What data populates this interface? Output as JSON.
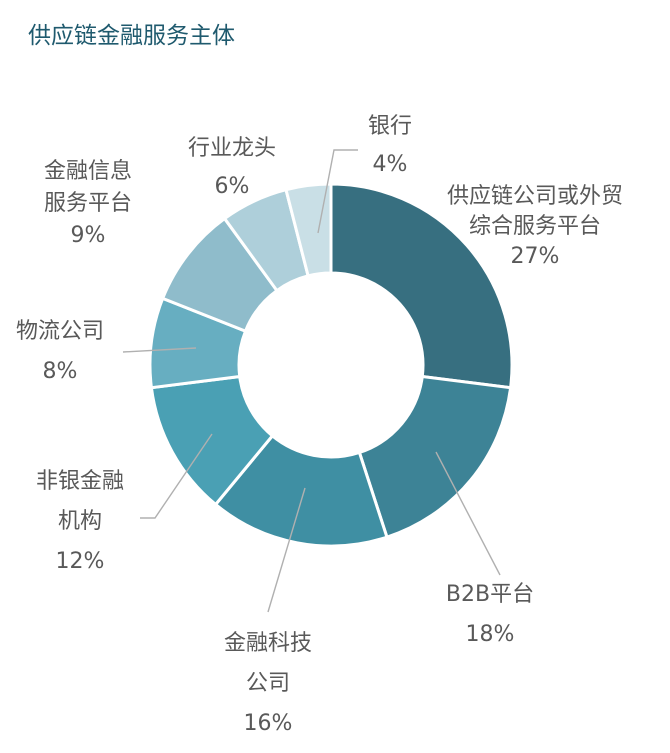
{
  "title": "供应链金融服务主体",
  "chart_data": {
    "type": "pie",
    "variant": "donut",
    "title": "供应链金融服务主体",
    "unit": "%",
    "slices": [
      {
        "label_lines": [
          "供应链公司或外贸",
          "综合服务平台"
        ],
        "value": 27,
        "value_label": "27%",
        "color": "#376f80"
      },
      {
        "label_lines": [
          "B2B平台"
        ],
        "value": 18,
        "value_label": "18%",
        "color": "#3d8396"
      },
      {
        "label_lines": [
          "金融科技",
          "公司"
        ],
        "value": 16,
        "value_label": "16%",
        "color": "#3f8fa3"
      },
      {
        "label_lines": [
          "非银金融",
          "机构"
        ],
        "value": 12,
        "value_label": "12%",
        "color": "#4aa0b4"
      },
      {
        "label_lines": [
          "物流公司"
        ],
        "value": 8,
        "value_label": "8%",
        "color": "#67aec1"
      },
      {
        "label_lines": [
          "金融信息",
          "服务平台"
        ],
        "value": 9,
        "value_label": "9%",
        "color": "#8fbccb"
      },
      {
        "label_lines": [
          "行业龙头"
        ],
        "value": 6,
        "value_label": "6%",
        "color": "#aecfda"
      },
      {
        "label_lines": [
          "银行"
        ],
        "value": 4,
        "value_label": "4%",
        "color": "#c9dfe6"
      }
    ],
    "start_position": "12 o'clock",
    "direction": "clockwise",
    "legend": "none"
  }
}
